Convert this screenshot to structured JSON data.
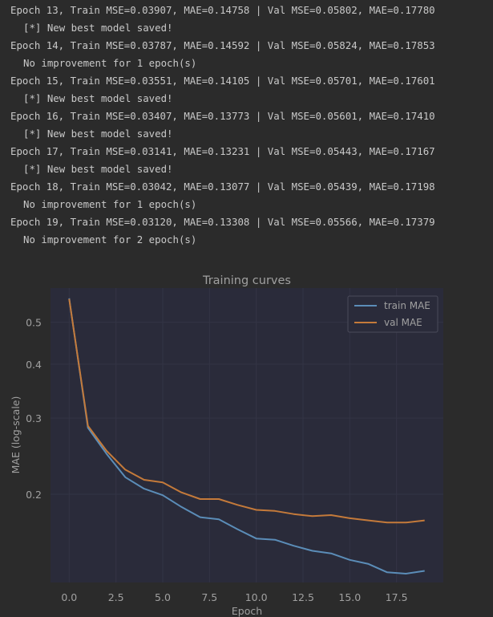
{
  "console": {
    "lines": [
      {
        "text": "Epoch 13, Train MSE=0.03907, MAE=0.14758 | Val MSE=0.05802, MAE=0.17780",
        "indent": false
      },
      {
        "text": "[*] New best model saved!",
        "indent": true
      },
      {
        "text": "Epoch 14, Train MSE=0.03787, MAE=0.14592 | Val MSE=0.05824, MAE=0.17853",
        "indent": false
      },
      {
        "text": "No improvement for 1 epoch(s)",
        "indent": true
      },
      {
        "text": "Epoch 15, Train MSE=0.03551, MAE=0.14105 | Val MSE=0.05701, MAE=0.17601",
        "indent": false
      },
      {
        "text": "[*] New best model saved!",
        "indent": true
      },
      {
        "text": "Epoch 16, Train MSE=0.03407, MAE=0.13773 | Val MSE=0.05601, MAE=0.17410",
        "indent": false
      },
      {
        "text": "[*] New best model saved!",
        "indent": true
      },
      {
        "text": "Epoch 17, Train MSE=0.03141, MAE=0.13231 | Val MSE=0.05443, MAE=0.17167",
        "indent": false
      },
      {
        "text": "[*] New best model saved!",
        "indent": true
      },
      {
        "text": "Epoch 18, Train MSE=0.03042, MAE=0.13077 | Val MSE=0.05439, MAE=0.17198",
        "indent": false
      },
      {
        "text": "No improvement for 1 epoch(s)",
        "indent": true
      },
      {
        "text": "Epoch 19, Train MSE=0.03120, MAE=0.13308 | Val MSE=0.05566, MAE=0.17379",
        "indent": false
      },
      {
        "text": "No improvement for 2 epoch(s)",
        "indent": true
      }
    ]
  },
  "chart_data": {
    "type": "line",
    "title": "Training curves",
    "xlabel": "Epoch",
    "ylabel": "MAE (log-scale)",
    "yscale": "log",
    "xlim": [
      -1,
      20
    ],
    "ylim": [
      0.125,
      0.6
    ],
    "xticks": [
      0.0,
      2.5,
      5.0,
      7.5,
      10.0,
      12.5,
      15.0,
      17.5
    ],
    "xtick_labels": [
      "0.0",
      "2.5",
      "5.0",
      "7.5",
      "10.0",
      "12.5",
      "15.0",
      "17.5"
    ],
    "yticks": [
      0.2,
      0.3,
      0.4,
      0.5
    ],
    "ytick_labels": [
      "0.2",
      "0.3",
      "0.4",
      "0.5"
    ],
    "grid": true,
    "legend": "top-right",
    "x": [
      0,
      1,
      2,
      3,
      4,
      5,
      6,
      7,
      8,
      9,
      10,
      11,
      12,
      13,
      14,
      15,
      16,
      17,
      18,
      19
    ],
    "series": [
      {
        "name": "train MAE",
        "color": "#5b8db8",
        "values": [
          0.568,
          0.285,
          0.248,
          0.219,
          0.206,
          0.199,
          0.187,
          0.177,
          0.175,
          0.166,
          0.158,
          0.157,
          0.152,
          0.148,
          0.146,
          0.141,
          0.138,
          0.132,
          0.131,
          0.133
        ]
      },
      {
        "name": "val MAE",
        "color": "#c47a3a",
        "values": [
          0.566,
          0.288,
          0.252,
          0.228,
          0.216,
          0.213,
          0.202,
          0.195,
          0.195,
          0.189,
          0.184,
          0.183,
          0.18,
          0.178,
          0.179,
          0.176,
          0.174,
          0.172,
          0.172,
          0.174
        ]
      }
    ]
  }
}
